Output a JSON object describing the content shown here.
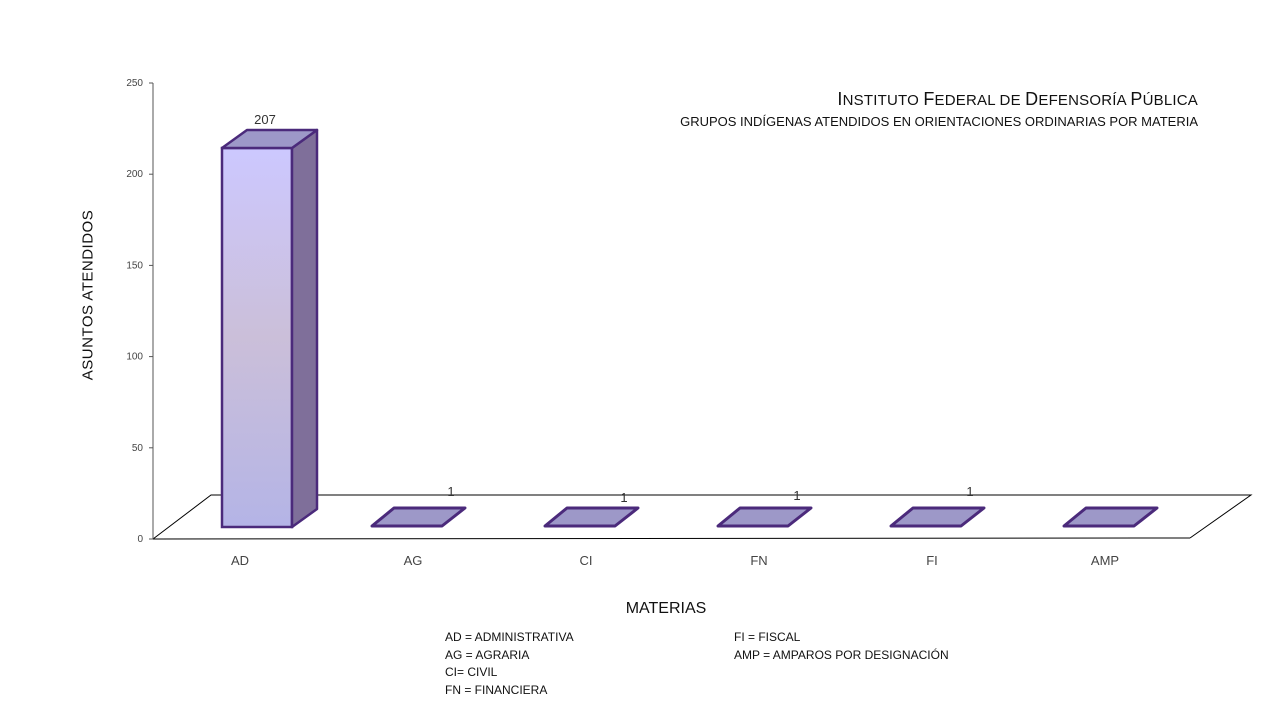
{
  "chart_data": {
    "type": "bar",
    "title_parts": [
      {
        "initial": "I",
        "rest": "NSTITUTO "
      },
      {
        "initial": "F",
        "rest": "EDERAL DE "
      },
      {
        "initial": "D",
        "rest": "EFENSORÍA "
      },
      {
        "initial": "P",
        "rest": "ÚBLICA"
      }
    ],
    "subtitle": "GRUPOS INDÍGENAS ATENDIDOS EN ORIENTACIONES ORDINARIAS POR MATERIA",
    "xlabel": "MATERIAS",
    "ylabel": "ASUNTOS ATENDIDOS",
    "categories": [
      "AD",
      "AG",
      "CI",
      "FN",
      "FI",
      "AMP"
    ],
    "values": [
      207,
      1,
      1,
      1,
      1,
      0
    ],
    "data_labels": [
      "207",
      "1",
      "1",
      "1",
      "1",
      ""
    ],
    "yticks": [
      "0",
      "50",
      "100",
      "150",
      "200",
      "250"
    ],
    "ylim": [
      0,
      250
    ],
    "grid": false,
    "style": "3d-column",
    "colors": {
      "bar_top": "#ccc8ff",
      "bar_middle": "#cbbfd9",
      "bar_bottom": "#b4b4e6",
      "bar_side": "#7f6f9a",
      "bar_cap": "#9d98c8",
      "bar_outline": "#4b2a7b"
    }
  },
  "legend": {
    "left": [
      "AD = ADMINISTRATIVA",
      "AG = AGRARIA",
      "CI= CIVIL",
      "FN = FINANCIERA"
    ],
    "right": [
      "FI = FISCAL",
      "AMP = AMPAROS POR DESIGNACIÓN"
    ]
  }
}
